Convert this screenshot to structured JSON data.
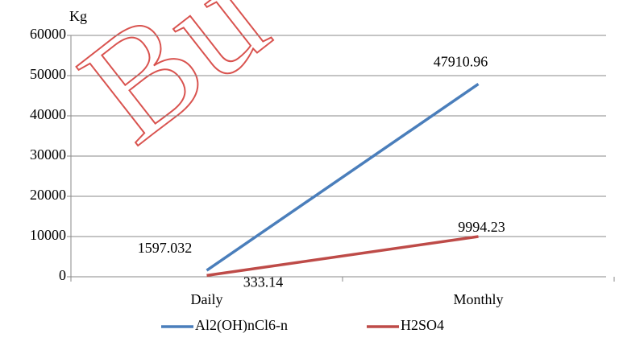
{
  "chart_data": {
    "type": "line",
    "y_label": "Kg",
    "watermark": "Bu",
    "categories": [
      "Daily",
      "Monthly"
    ],
    "series": [
      {
        "name": "Al2(OH)nCl6-n",
        "color": "#4a7ebb",
        "values": [
          1597.032,
          47910.96
        ]
      },
      {
        "name": "H2SO4",
        "color": "#be4b48",
        "values": [
          333.14,
          9994.23
        ]
      }
    ],
    "ylim": [
      0,
      60000
    ],
    "yticks": [
      0,
      10000,
      20000,
      30000,
      40000,
      50000,
      60000
    ],
    "grid": true,
    "legend": "bottom"
  }
}
